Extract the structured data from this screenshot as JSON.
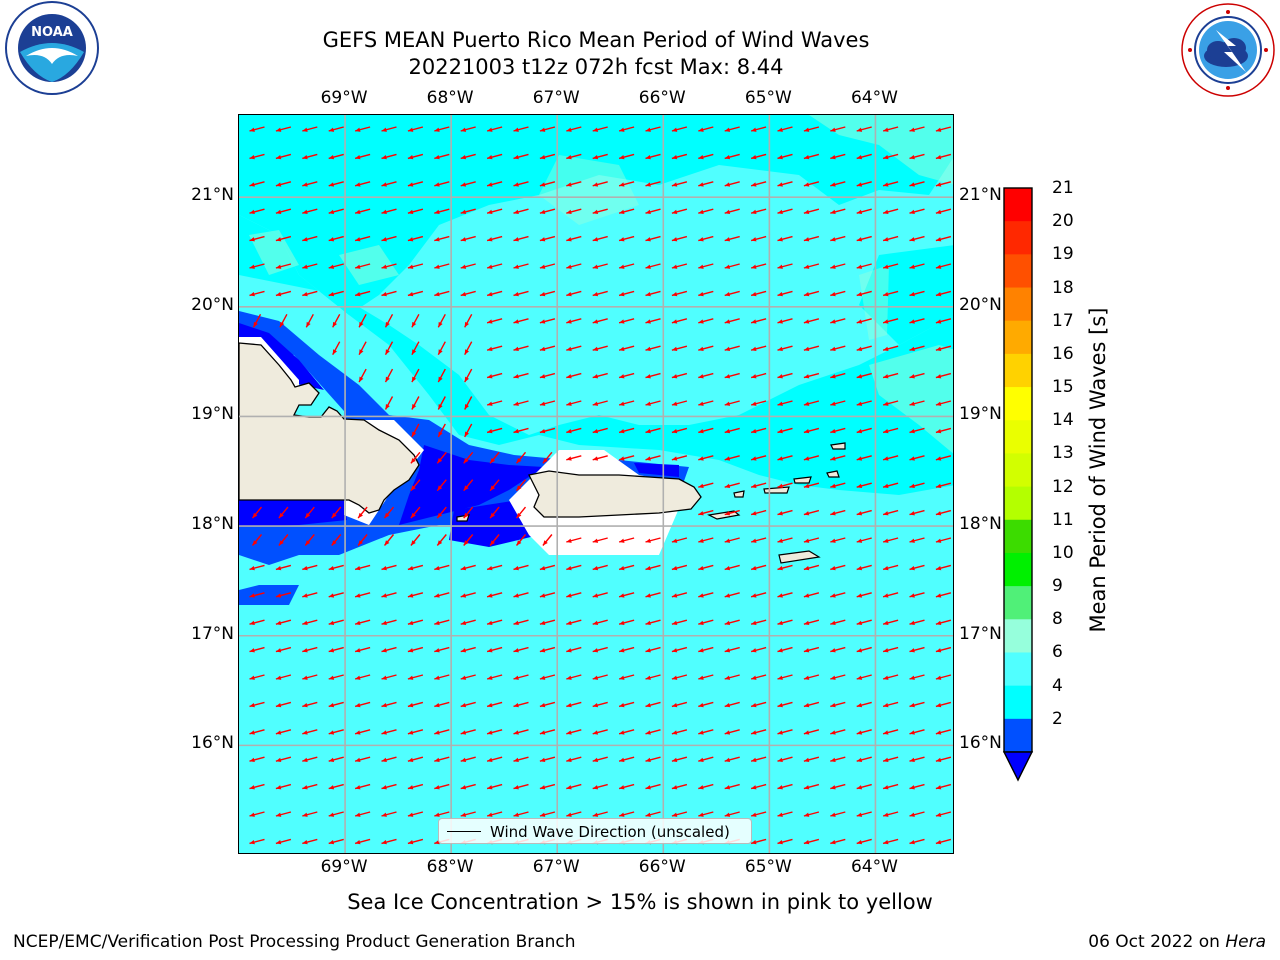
{
  "header": {
    "title_line1": "GEFS MEAN Puerto Rico Mean Period of Wind Waves",
    "title_line2": "20221003 t12z 072h fcst   Max: 8.44"
  },
  "logos": {
    "noaa": {
      "text": "NOAA",
      "ring_text": "NATIONAL OCEANIC AND ATMOSPHERIC ADMINISTRATION · U.S. DEPARTMENT OF COMMERCE",
      "icon": "noaa-logo"
    },
    "nws": {
      "ring_text": "NATIONAL WEATHER SERVICE",
      "icon": "nws-logo"
    }
  },
  "map": {
    "lon_labels": [
      "69°W",
      "68°W",
      "67°W",
      "66°W",
      "65°W",
      "64°W"
    ],
    "lat_labels": [
      "21°N",
      "20°N",
      "19°N",
      "18°N",
      "17°N",
      "16°N"
    ],
    "lon_range": [
      -70.0,
      -63.25
    ],
    "lat_range": [
      15.0,
      21.75
    ],
    "grid": true,
    "arrow_color": "#ff0000",
    "land_color": "#efebdd",
    "wave_direction": "east-northeast to west-southwest (arrows point WSW)"
  },
  "colorbar": {
    "title": "Mean Period of Wind Waves [s]",
    "labels": [
      "21",
      "20",
      "19",
      "18",
      "17",
      "16",
      "15",
      "14",
      "13",
      "12",
      "11",
      "10",
      "9",
      "8",
      "6",
      "4",
      "2"
    ],
    "colors_top_to_bottom": [
      "#ff0000",
      "#ff2800",
      "#ff5000",
      "#ff8200",
      "#ffaa00",
      "#ffd200",
      "#ffff00",
      "#eaff00",
      "#d2ff00",
      "#b4ff00",
      "#3cdc00",
      "#00f000",
      "#50f078",
      "#96ffdc",
      "#50ffff",
      "#00ffff",
      "#0050ff"
    ],
    "extend_low_color": "#0000ff"
  },
  "legend": {
    "label": "Wind Wave Direction (unscaled)"
  },
  "footnote": "Sea Ice Concentration > 15% is shown in pink to yellow",
  "footer": {
    "left": "NCEP/EMC/Verification Post Processing Product Generation Branch",
    "right_date": "06 Oct 2022 on ",
    "right_host": "Hera"
  }
}
